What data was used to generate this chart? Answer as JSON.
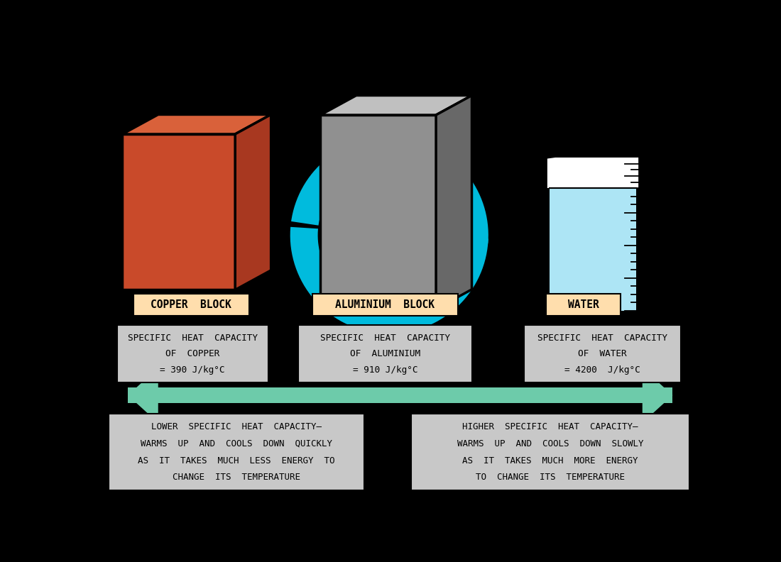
{
  "bg_color": "#000000",
  "copper_color_front": "#C94A2A",
  "copper_color_top": "#D9613A",
  "copper_color_side": "#A83820",
  "aluminium_color_front": "#909090",
  "aluminium_color_top": "#C0C0C0",
  "aluminium_color_side": "#686868",
  "beaker_water_color": "#ADE5F5",
  "label_bg_peach": "#FFDEAD",
  "label_bg_info": "#C8C8C8",
  "arrow_color": "#6DCBAA",
  "cyan_color": "#00BBDD",
  "copper_label": "COPPER  BLOCK",
  "aluminium_label": "ALUMINIUM  BLOCK",
  "water_label": "WATER",
  "copper_info_line1": "SPECIFIC  HEAT  CAPACITY",
  "copper_info_line2": "OF  COPPER",
  "copper_info_line3": "= 390 J/kg°C",
  "aluminium_info_line1": "SPECIFIC  HEAT  CAPACITY",
  "aluminium_info_line2": "OF  ALUMINIUM",
  "aluminium_info_line3": "= 910 J/kg°C",
  "water_info_line1": "SPECIFIC  HEAT  CAPACITY",
  "water_info_line2": "OF  WATER",
  "water_info_line3": "= 4200  J/kg°C",
  "lower_text_line1": "LOWER  SPECIFIC  HEAT  CAPACITY–",
  "lower_text_line2": "WARMS  UP  AND  COOLS  DOWN  QUICKLY",
  "lower_text_line3": "AS  IT  TAKES  MUCH  LESS  ENERGY  TO",
  "lower_text_line4": "CHANGE  ITS  TEMPERATURE",
  "higher_text_line1": "HIGHER  SPECIFIC  HEAT  CAPACITY–",
  "higher_text_line2": "WARMS  UP  AND  COOLS  DOWN  SLOWLY",
  "higher_text_line3": "AS  IT  TAKES  MUCH  MORE  ENERGY",
  "higher_text_line4": "TO  CHANGE  ITS  TEMPERATURE"
}
